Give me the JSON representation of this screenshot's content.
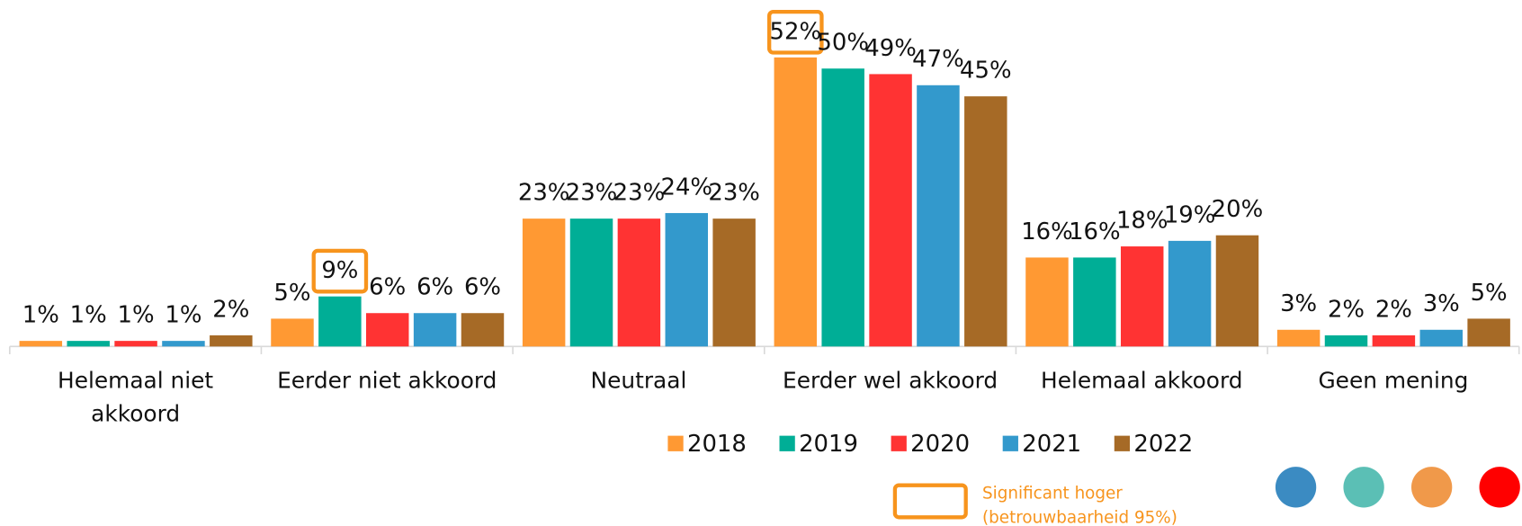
{
  "chart_data": {
    "type": "bar",
    "categories": [
      "Helemaal niet akkoord",
      "Eerder niet akkoord",
      "Neutraal",
      "Eerder wel akkoord",
      "Helemaal akkoord",
      "Geen mening"
    ],
    "series": [
      {
        "name": "2018",
        "color": "#FF9933",
        "values": [
          1,
          5,
          23,
          52,
          16,
          3
        ],
        "value_labels": [
          "1%",
          "5%",
          "23%",
          "52%",
          "16%",
          "3%"
        ],
        "significant": [
          false,
          false,
          false,
          true,
          false,
          false
        ]
      },
      {
        "name": "2019",
        "color": "#00AE96",
        "values": [
          1,
          9,
          23,
          50,
          16,
          2
        ],
        "value_labels": [
          "1%",
          "9%",
          "23%",
          "50%",
          "16%",
          "2%"
        ],
        "significant": [
          false,
          true,
          false,
          false,
          false,
          false
        ]
      },
      {
        "name": "2020",
        "color": "#FF3333",
        "values": [
          1,
          6,
          23,
          49,
          18,
          2
        ],
        "value_labels": [
          "1%",
          "6%",
          "23%",
          "49%",
          "18%",
          "2%"
        ],
        "significant": [
          false,
          false,
          false,
          false,
          false,
          false
        ]
      },
      {
        "name": "2021",
        "color": "#3399CC",
        "values": [
          1,
          6,
          24,
          47,
          19,
          3
        ],
        "value_labels": [
          "1%",
          "6%",
          "24%",
          "47%",
          "19%",
          "3%"
        ],
        "significant": [
          false,
          false,
          false,
          false,
          false,
          false
        ]
      },
      {
        "name": "2022",
        "color": "#A66A26",
        "values": [
          2,
          6,
          23,
          45,
          20,
          5
        ],
        "value_labels": [
          "2%",
          "6%",
          "23%",
          "45%",
          "20%",
          "5%"
        ],
        "significant": [
          false,
          false,
          false,
          false,
          false,
          false
        ]
      }
    ],
    "ylim": [
      0,
      55
    ],
    "significance_note": [
      "Significant hoger",
      "(betrouwbaarheid 95%)"
    ],
    "highlight_color": "#F7941D"
  }
}
